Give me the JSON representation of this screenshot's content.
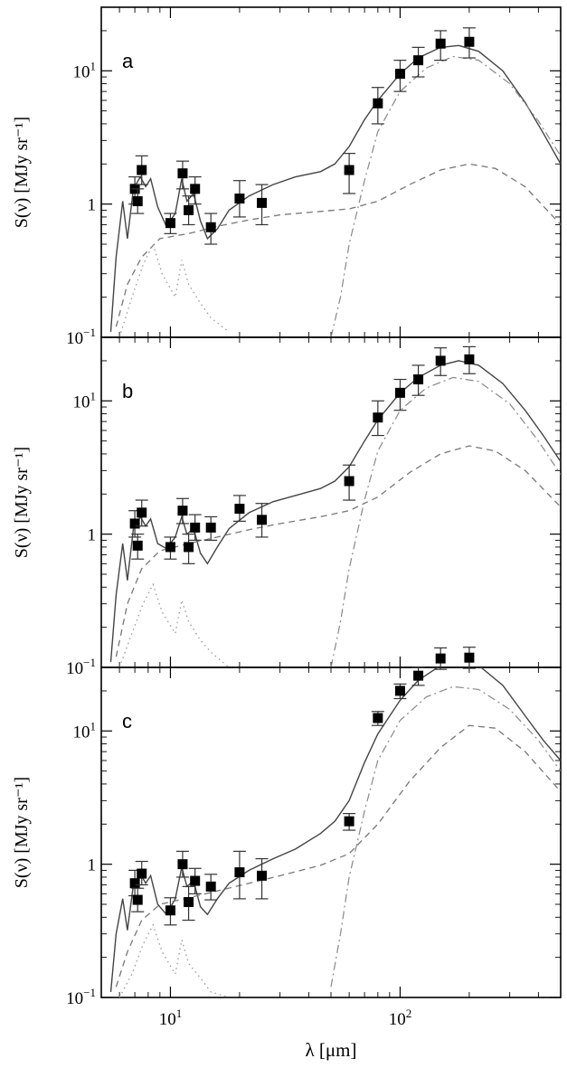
{
  "figure": {
    "xlabel": "λ [μm]",
    "ylabel": "S(ν) [MJy sr⁻¹]",
    "xlim": [
      5,
      500
    ],
    "ylim": [
      0.1,
      30
    ],
    "x_scale": "log",
    "y_scale": "log"
  },
  "chart_data": [
    {
      "type": "scatter",
      "panel_label": "a",
      "x_tick_labels": [
        "10¹",
        "10²"
      ],
      "y_tick_labels": [
        "10⁻¹",
        "1",
        "10¹"
      ],
      "points": [
        {
          "x": 7.0,
          "y": 1.3,
          "ylo": 1.0,
          "yhi": 1.6
        },
        {
          "x": 7.2,
          "y": 1.05,
          "ylo": 0.85,
          "yhi": 1.3
        },
        {
          "x": 7.5,
          "y": 1.8,
          "ylo": 1.4,
          "yhi": 2.3
        },
        {
          "x": 10.0,
          "y": 0.72,
          "ylo": 0.6,
          "yhi": 0.85
        },
        {
          "x": 11.3,
          "y": 1.7,
          "ylo": 1.3,
          "yhi": 2.1
        },
        {
          "x": 12.0,
          "y": 0.9,
          "ylo": 0.7,
          "yhi": 1.15
        },
        {
          "x": 12.8,
          "y": 1.3,
          "ylo": 1.0,
          "yhi": 1.6
        },
        {
          "x": 15.0,
          "y": 0.67,
          "ylo": 0.5,
          "yhi": 0.85
        },
        {
          "x": 20.0,
          "y": 1.1,
          "ylo": 0.8,
          "yhi": 1.5
        },
        {
          "x": 25.0,
          "y": 1.02,
          "ylo": 0.7,
          "yhi": 1.4
        },
        {
          "x": 60.0,
          "y": 1.8,
          "ylo": 1.2,
          "yhi": 2.4
        },
        {
          "x": 80.0,
          "y": 5.7,
          "ylo": 4.0,
          "yhi": 7.5
        },
        {
          "x": 100.0,
          "y": 9.5,
          "ylo": 7.0,
          "yhi": 12.0
        },
        {
          "x": 120.0,
          "y": 12.0,
          "ylo": 9.0,
          "yhi": 15.0
        },
        {
          "x": 150.0,
          "y": 16.0,
          "ylo": 12.0,
          "yhi": 20.0
        },
        {
          "x": 200.0,
          "y": 16.5,
          "ylo": 12.5,
          "yhi": 21.0
        }
      ],
      "models": {
        "total": [
          [
            5.5,
            0.11
          ],
          [
            5.8,
            0.4
          ],
          [
            6.2,
            1.05
          ],
          [
            6.5,
            0.55
          ],
          [
            6.9,
            1.3
          ],
          [
            7.4,
            1.6
          ],
          [
            7.8,
            1.35
          ],
          [
            8.2,
            1.55
          ],
          [
            8.8,
            0.95
          ],
          [
            9.6,
            0.68
          ],
          [
            10.5,
            0.85
          ],
          [
            11.2,
            1.55
          ],
          [
            11.8,
            1.05
          ],
          [
            12.6,
            1.2
          ],
          [
            13.5,
            0.75
          ],
          [
            14.5,
            0.55
          ],
          [
            16.0,
            0.65
          ],
          [
            18.0,
            0.9
          ],
          [
            22.0,
            1.15
          ],
          [
            28.0,
            1.4
          ],
          [
            35.0,
            1.6
          ],
          [
            45.0,
            1.75
          ],
          [
            52.0,
            2.0
          ],
          [
            60.0,
            2.7
          ],
          [
            70.0,
            4.3
          ],
          [
            80.0,
            6.0
          ],
          [
            100.0,
            9.5
          ],
          [
            120.0,
            12.5
          ],
          [
            150.0,
            15.0
          ],
          [
            180.0,
            15.5
          ],
          [
            220.0,
            14.0
          ],
          [
            280.0,
            10.0
          ],
          [
            350.0,
            5.8
          ],
          [
            420.0,
            3.4
          ],
          [
            500.0,
            2.0
          ]
        ],
        "dashed": [
          [
            5.8,
            0.12
          ],
          [
            6.5,
            0.25
          ],
          [
            7.5,
            0.4
          ],
          [
            9.0,
            0.55
          ],
          [
            12.0,
            0.6
          ],
          [
            16.0,
            0.68
          ],
          [
            22.0,
            0.76
          ],
          [
            30.0,
            0.83
          ],
          [
            45.0,
            0.88
          ],
          [
            60.0,
            0.92
          ],
          [
            80.0,
            1.05
          ],
          [
            110.0,
            1.4
          ],
          [
            150.0,
            1.8
          ],
          [
            200.0,
            2.0
          ],
          [
            260.0,
            1.85
          ],
          [
            350.0,
            1.35
          ],
          [
            500.0,
            0.7
          ]
        ],
        "dashdot": [
          [
            50.0,
            0.1
          ],
          [
            55.0,
            0.2
          ],
          [
            60.0,
            0.5
          ],
          [
            70.0,
            1.5
          ],
          [
            80.0,
            3.5
          ],
          [
            100.0,
            7.0
          ],
          [
            130.0,
            10.5
          ],
          [
            170.0,
            12.8
          ],
          [
            220.0,
            12.0
          ],
          [
            300.0,
            8.0
          ],
          [
            400.0,
            4.2
          ],
          [
            500.0,
            2.3
          ]
        ],
        "dotted": [
          [
            6.0,
            0.1
          ],
          [
            6.8,
            0.2
          ],
          [
            7.6,
            0.35
          ],
          [
            8.4,
            0.5
          ],
          [
            9.2,
            0.3
          ],
          [
            10.5,
            0.2
          ],
          [
            11.2,
            0.38
          ],
          [
            12.0,
            0.25
          ],
          [
            13.5,
            0.18
          ],
          [
            15.0,
            0.14
          ],
          [
            18.0,
            0.11
          ]
        ]
      }
    },
    {
      "type": "scatter",
      "panel_label": "b",
      "x_tick_labels": [
        "10¹",
        "10²"
      ],
      "y_tick_labels": [
        "10⁻¹",
        "1",
        "10¹"
      ],
      "points": [
        {
          "x": 7.0,
          "y": 1.2,
          "ylo": 0.95,
          "yhi": 1.5
        },
        {
          "x": 7.2,
          "y": 0.82,
          "ylo": 0.65,
          "yhi": 1.0
        },
        {
          "x": 7.5,
          "y": 1.45,
          "ylo": 1.15,
          "yhi": 1.8
        },
        {
          "x": 10.0,
          "y": 0.8,
          "ylo": 0.65,
          "yhi": 0.95
        },
        {
          "x": 11.3,
          "y": 1.5,
          "ylo": 1.2,
          "yhi": 1.85
        },
        {
          "x": 12.0,
          "y": 0.8,
          "ylo": 0.6,
          "yhi": 1.0
        },
        {
          "x": 12.8,
          "y": 1.12,
          "ylo": 0.9,
          "yhi": 1.4
        },
        {
          "x": 15.0,
          "y": 1.12,
          "ylo": 0.9,
          "yhi": 1.35
        },
        {
          "x": 20.0,
          "y": 1.55,
          "ylo": 1.25,
          "yhi": 1.95
        },
        {
          "x": 25.0,
          "y": 1.28,
          "ylo": 0.95,
          "yhi": 1.7
        },
        {
          "x": 60.0,
          "y": 2.5,
          "ylo": 1.8,
          "yhi": 3.3
        },
        {
          "x": 80.0,
          "y": 7.5,
          "ylo": 5.5,
          "yhi": 10.0
        },
        {
          "x": 100.0,
          "y": 11.5,
          "ylo": 8.5,
          "yhi": 14.5
        },
        {
          "x": 120.0,
          "y": 14.5,
          "ylo": 11.0,
          "yhi": 18.5
        },
        {
          "x": 150.0,
          "y": 20.0,
          "ylo": 15.5,
          "yhi": 25.0
        },
        {
          "x": 200.0,
          "y": 20.5,
          "ylo": 16.0,
          "yhi": 25.5
        }
      ],
      "models": {
        "total": [
          [
            5.5,
            0.11
          ],
          [
            5.8,
            0.35
          ],
          [
            6.2,
            0.85
          ],
          [
            6.5,
            0.45
          ],
          [
            6.9,
            1.1
          ],
          [
            7.4,
            1.35
          ],
          [
            7.8,
            1.15
          ],
          [
            8.2,
            1.3
          ],
          [
            8.8,
            0.85
          ],
          [
            9.6,
            0.78
          ],
          [
            10.5,
            0.95
          ],
          [
            11.2,
            1.35
          ],
          [
            11.8,
            1.0
          ],
          [
            12.6,
            1.1
          ],
          [
            13.5,
            0.72
          ],
          [
            14.5,
            0.6
          ],
          [
            16.0,
            0.8
          ],
          [
            18.0,
            1.1
          ],
          [
            22.0,
            1.45
          ],
          [
            28.0,
            1.75
          ],
          [
            35.0,
            1.95
          ],
          [
            45.0,
            2.2
          ],
          [
            52.0,
            2.5
          ],
          [
            60.0,
            3.2
          ],
          [
            70.0,
            5.0
          ],
          [
            80.0,
            7.2
          ],
          [
            100.0,
            11.5
          ],
          [
            120.0,
            15.0
          ],
          [
            150.0,
            18.5
          ],
          [
            180.0,
            20.0
          ],
          [
            220.0,
            18.5
          ],
          [
            280.0,
            13.5
          ],
          [
            350.0,
            8.5
          ],
          [
            420.0,
            5.5
          ],
          [
            500.0,
            3.5
          ]
        ],
        "dashed": [
          [
            5.8,
            0.12
          ],
          [
            6.5,
            0.3
          ],
          [
            7.5,
            0.55
          ],
          [
            9.0,
            0.75
          ],
          [
            12.0,
            0.85
          ],
          [
            16.0,
            0.95
          ],
          [
            22.0,
            1.08
          ],
          [
            30.0,
            1.2
          ],
          [
            45.0,
            1.35
          ],
          [
            60.0,
            1.5
          ],
          [
            80.0,
            1.9
          ],
          [
            110.0,
            2.9
          ],
          [
            150.0,
            4.0
          ],
          [
            200.0,
            4.6
          ],
          [
            260.0,
            4.2
          ],
          [
            350.0,
            3.0
          ],
          [
            500.0,
            1.6
          ]
        ],
        "dashdot": [
          [
            50.0,
            0.1
          ],
          [
            55.0,
            0.22
          ],
          [
            60.0,
            0.55
          ],
          [
            70.0,
            1.8
          ],
          [
            80.0,
            4.2
          ],
          [
            100.0,
            8.5
          ],
          [
            130.0,
            12.5
          ],
          [
            170.0,
            15.0
          ],
          [
            220.0,
            14.0
          ],
          [
            300.0,
            9.5
          ],
          [
            400.0,
            5.0
          ],
          [
            500.0,
            2.8
          ]
        ],
        "dotted": [
          [
            6.0,
            0.1
          ],
          [
            6.8,
            0.18
          ],
          [
            7.6,
            0.3
          ],
          [
            8.4,
            0.42
          ],
          [
            9.2,
            0.26
          ],
          [
            10.5,
            0.18
          ],
          [
            11.2,
            0.32
          ],
          [
            12.0,
            0.22
          ],
          [
            13.5,
            0.16
          ],
          [
            15.0,
            0.13
          ],
          [
            18.0,
            0.1
          ]
        ]
      }
    },
    {
      "type": "scatter",
      "panel_label": "c",
      "x_tick_labels": [
        "10¹",
        "10²"
      ],
      "y_tick_labels": [
        "10⁻¹",
        "1",
        "10¹"
      ],
      "points": [
        {
          "x": 7.0,
          "y": 0.72,
          "ylo": 0.58,
          "yhi": 0.9
        },
        {
          "x": 7.2,
          "y": 0.54,
          "ylo": 0.44,
          "yhi": 0.66
        },
        {
          "x": 7.5,
          "y": 0.85,
          "ylo": 0.7,
          "yhi": 1.05
        },
        {
          "x": 10.0,
          "y": 0.45,
          "ylo": 0.35,
          "yhi": 0.56
        },
        {
          "x": 11.3,
          "y": 1.0,
          "ylo": 0.8,
          "yhi": 1.25
        },
        {
          "x": 12.0,
          "y": 0.52,
          "ylo": 0.38,
          "yhi": 0.68
        },
        {
          "x": 12.8,
          "y": 0.75,
          "ylo": 0.6,
          "yhi": 0.93
        },
        {
          "x": 15.0,
          "y": 0.68,
          "ylo": 0.54,
          "yhi": 0.84
        },
        {
          "x": 20.0,
          "y": 0.87,
          "ylo": 0.55,
          "yhi": 1.25
        },
        {
          "x": 25.0,
          "y": 0.82,
          "ylo": 0.55,
          "yhi": 1.1
        },
        {
          "x": 60.0,
          "y": 2.1,
          "ylo": 1.8,
          "yhi": 2.4
        },
        {
          "x": 80.0,
          "y": 12.5,
          "ylo": 11.0,
          "yhi": 14.0
        },
        {
          "x": 100.0,
          "y": 20.0,
          "ylo": 17.5,
          "yhi": 22.5
        },
        {
          "x": 120.0,
          "y": 26.0,
          "ylo": 22.0,
          "yhi": 30.0
        },
        {
          "x": 150.0,
          "y": 35.0,
          "ylo": 29.0,
          "yhi": 42.0
        },
        {
          "x": 200.0,
          "y": 35.5,
          "ylo": 29.5,
          "yhi": 42.5
        }
      ],
      "models": {
        "total": [
          [
            5.5,
            0.11
          ],
          [
            5.8,
            0.3
          ],
          [
            6.2,
            0.55
          ],
          [
            6.5,
            0.32
          ],
          [
            6.9,
            0.7
          ],
          [
            7.4,
            0.85
          ],
          [
            7.8,
            0.72
          ],
          [
            8.2,
            0.82
          ],
          [
            8.8,
            0.5
          ],
          [
            9.6,
            0.42
          ],
          [
            10.5,
            0.55
          ],
          [
            11.2,
            0.95
          ],
          [
            11.8,
            0.68
          ],
          [
            12.6,
            0.75
          ],
          [
            13.5,
            0.48
          ],
          [
            14.5,
            0.42
          ],
          [
            16.0,
            0.55
          ],
          [
            18.0,
            0.72
          ],
          [
            22.0,
            0.9
          ],
          [
            28.0,
            1.1
          ],
          [
            35.0,
            1.3
          ],
          [
            45.0,
            1.7
          ],
          [
            52.0,
            2.1
          ],
          [
            60.0,
            3.0
          ],
          [
            70.0,
            5.8
          ],
          [
            80.0,
            9.5
          ],
          [
            100.0,
            17.0
          ],
          [
            120.0,
            24.0
          ],
          [
            150.0,
            31.0
          ],
          [
            180.0,
            33.5
          ],
          [
            220.0,
            31.0
          ],
          [
            280.0,
            22.0
          ],
          [
            350.0,
            13.0
          ],
          [
            420.0,
            8.5
          ],
          [
            500.0,
            6.0
          ]
        ],
        "dashed": [
          [
            5.8,
            0.12
          ],
          [
            6.5,
            0.22
          ],
          [
            7.5,
            0.38
          ],
          [
            9.0,
            0.5
          ],
          [
            12.0,
            0.56
          ],
          [
            16.0,
            0.63
          ],
          [
            22.0,
            0.72
          ],
          [
            30.0,
            0.82
          ],
          [
            45.0,
            0.98
          ],
          [
            60.0,
            1.2
          ],
          [
            80.0,
            2.0
          ],
          [
            110.0,
            4.2
          ],
          [
            150.0,
            7.5
          ],
          [
            200.0,
            11.0
          ],
          [
            260.0,
            10.5
          ],
          [
            350.0,
            7.0
          ],
          [
            500.0,
            3.5
          ]
        ],
        "dashdot": [
          [
            50.0,
            0.12
          ],
          [
            55.0,
            0.3
          ],
          [
            60.0,
            0.8
          ],
          [
            70.0,
            2.5
          ],
          [
            80.0,
            6.0
          ],
          [
            100.0,
            12.0
          ],
          [
            130.0,
            18.0
          ],
          [
            170.0,
            21.5
          ],
          [
            220.0,
            20.5
          ],
          [
            300.0,
            14.5
          ],
          [
            400.0,
            8.5
          ],
          [
            500.0,
            5.0
          ]
        ],
        "dotted": [
          [
            6.0,
            0.1
          ],
          [
            6.8,
            0.15
          ],
          [
            7.6,
            0.25
          ],
          [
            8.4,
            0.35
          ],
          [
            9.2,
            0.22
          ],
          [
            10.5,
            0.15
          ],
          [
            11.2,
            0.27
          ],
          [
            12.0,
            0.18
          ],
          [
            13.5,
            0.14
          ],
          [
            15.0,
            0.11
          ],
          [
            18.0,
            0.1
          ]
        ]
      }
    }
  ]
}
